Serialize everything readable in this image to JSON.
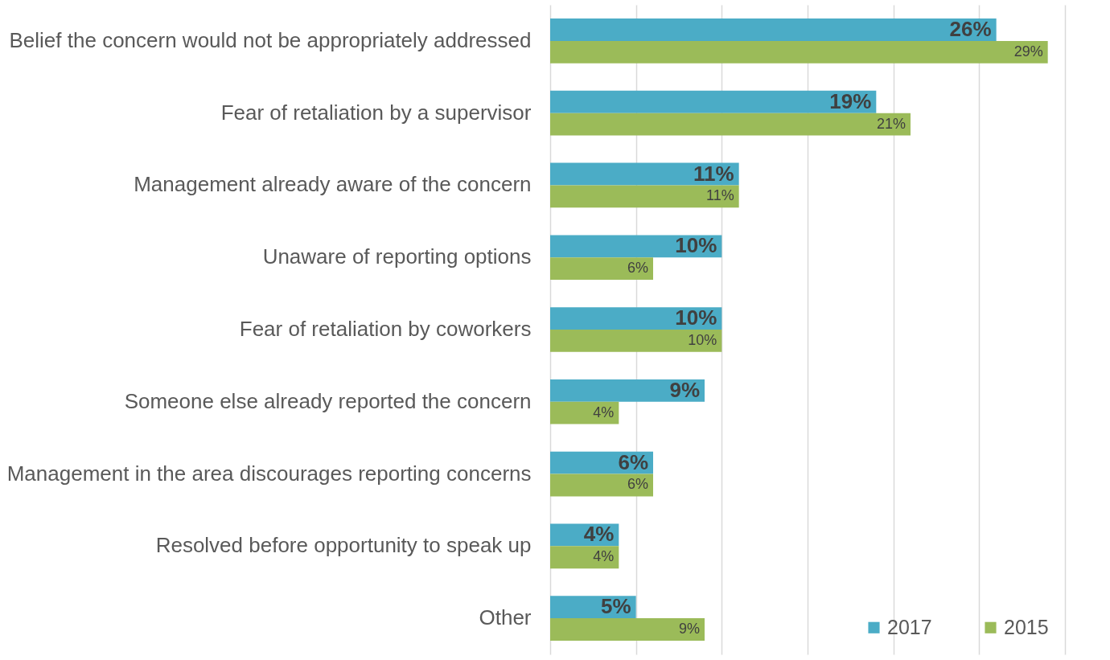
{
  "chart_data": {
    "type": "bar",
    "orientation": "horizontal",
    "categories": [
      "Belief the concern would not be appropriately addressed",
      "Fear of retaliation by a supervisor",
      "Management already aware of the concern",
      "Unaware of reporting options",
      "Fear of retaliation by coworkers",
      "Someone else already reported the concern",
      "Management in the area discourages reporting concerns",
      "Resolved before opportunity to speak up",
      "Other"
    ],
    "series": [
      {
        "name": "2017",
        "color": "#4bacc6",
        "values": [
          26,
          19,
          11,
          10,
          10,
          9,
          6,
          4,
          5
        ],
        "value_labels": [
          "26%",
          "19%",
          "11%",
          "10%",
          "10%",
          "9%",
          "6%",
          "4%",
          "5%"
        ]
      },
      {
        "name": "2015",
        "color": "#9bbb59",
        "values": [
          29,
          21,
          11,
          6,
          10,
          4,
          6,
          4,
          9
        ],
        "value_labels": [
          "29%",
          "21%",
          "11%",
          "6%",
          "10%",
          "4%",
          "6%",
          "4%",
          "9%"
        ]
      }
    ],
    "xlim": [
      0,
      30
    ],
    "xticks": [
      {
        "value": 0,
        "label": null
      },
      {
        "value": 5,
        "label": null
      },
      {
        "value": 10,
        "label": null
      },
      {
        "value": 15,
        "label": null
      },
      {
        "value": 20,
        "label": null
      },
      {
        "value": 25,
        "label": null
      },
      {
        "value": 30,
        "label": null
      }
    ],
    "grid": "x",
    "legend": "bottom right",
    "tick_labels": "y"
  }
}
